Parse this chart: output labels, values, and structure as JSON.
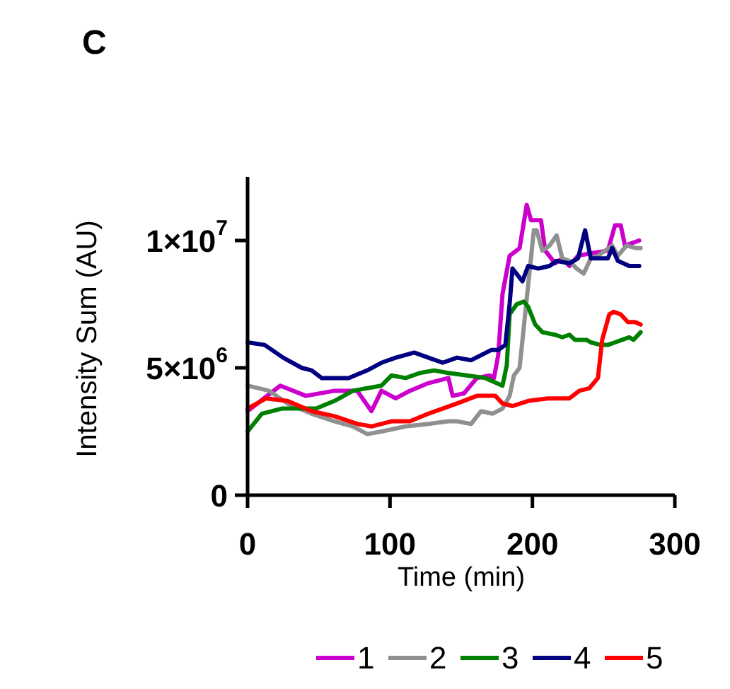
{
  "chart_data": {
    "type": "line",
    "title": "C",
    "xlabel": "Time (min)",
    "ylabel": "Intensity Sum (AU)",
    "xlim": [
      0,
      300
    ],
    "xticks": [
      0,
      100,
      200,
      300
    ],
    "ylim": [
      0,
      12500000
    ],
    "yticks": [
      0,
      {
        "value": 5000000,
        "label": "5×10$^{6}$"
      },
      {
        "value": 10000000,
        "label": "1×10$^{7}$"
      }
    ],
    "legend": "bottom",
    "series": [
      {
        "name": "1",
        "color": "#cc00cc",
        "x": [
          0,
          23,
          41,
          61,
          77,
          87,
          94,
          104,
          114,
          127,
          141,
          144,
          152,
          161,
          170,
          173,
          176,
          179,
          184,
          191,
          196,
          199,
          206,
          209,
          216,
          221,
          226,
          232,
          241,
          253,
          258,
          262,
          265,
          270,
          275
        ],
        "values": [
          3300000,
          4300000,
          3900000,
          4100000,
          4100000,
          3300000,
          4100000,
          3800000,
          4100000,
          4400000,
          4600000,
          3900000,
          4000000,
          4600000,
          4700000,
          4600000,
          5500000,
          7900000,
          9400000,
          9700000,
          11400000,
          10800000,
          10800000,
          9600000,
          9100000,
          9300000,
          9000000,
          9400000,
          9500000,
          9600000,
          10600000,
          10600000,
          9800000,
          9900000,
          10000000
        ]
      },
      {
        "name": "2",
        "color": "#909090",
        "x": [
          0,
          15,
          28,
          45,
          61,
          74,
          84,
          94,
          111,
          127,
          141,
          147,
          157,
          164,
          172,
          179,
          184,
          187,
          191,
          201,
          203,
          207,
          212,
          217,
          221,
          226,
          231,
          236,
          241,
          246,
          251,
          256,
          260,
          266,
          273,
          276
        ],
        "values": [
          4300000,
          4100000,
          3600000,
          3200000,
          2900000,
          2700000,
          2400000,
          2500000,
          2700000,
          2800000,
          2900000,
          2900000,
          2800000,
          3300000,
          3200000,
          3400000,
          3900000,
          4700000,
          5000000,
          10400000,
          10400000,
          9600000,
          9800000,
          10200000,
          9300000,
          9200000,
          8900000,
          8700000,
          9300000,
          9400000,
          9600000,
          9800000,
          9400000,
          9800000,
          9700000,
          9700000
        ]
      },
      {
        "name": "3",
        "color": "#008000",
        "x": [
          0,
          10,
          24,
          38,
          48,
          61,
          74,
          84,
          94,
          101,
          111,
          121,
          131,
          141,
          154,
          167,
          179,
          182,
          184,
          189,
          194,
          197,
          202,
          207,
          216,
          221,
          226,
          230,
          238,
          241,
          248,
          253,
          258,
          263,
          268,
          271,
          276
        ],
        "values": [
          2500000,
          3200000,
          3400000,
          3400000,
          3400000,
          3700000,
          4100000,
          4200000,
          4300000,
          4700000,
          4600000,
          4800000,
          4900000,
          4800000,
          4700000,
          4600000,
          4300000,
          5100000,
          7100000,
          7500000,
          7600000,
          7400000,
          6700000,
          6400000,
          6300000,
          6200000,
          6300000,
          6100000,
          6100000,
          6000000,
          5900000,
          5900000,
          6000000,
          6100000,
          6200000,
          6100000,
          6400000
        ]
      },
      {
        "name": "4",
        "color": "#000080",
        "x": [
          0,
          12,
          25,
          38,
          45,
          52,
          64,
          71,
          84,
          94,
          104,
          117,
          127,
          137,
          147,
          157,
          171,
          176,
          181,
          184,
          186,
          193,
          197,
          204,
          212,
          217,
          226,
          232,
          237,
          241,
          253,
          256,
          260,
          268,
          275
        ],
        "values": [
          6000000,
          5900000,
          5400000,
          5000000,
          4900000,
          4600000,
          4600000,
          4600000,
          4900000,
          5200000,
          5400000,
          5600000,
          5400000,
          5200000,
          5400000,
          5300000,
          5700000,
          5700000,
          5900000,
          7500000,
          8900000,
          8400000,
          9000000,
          8900000,
          9000000,
          9200000,
          9100000,
          9300000,
          10400000,
          9300000,
          9300000,
          9700000,
          9200000,
          9000000,
          9000000
        ]
      },
      {
        "name": "5",
        "color": "#ff0000",
        "x": [
          0,
          13,
          28,
          45,
          61,
          77,
          87,
          101,
          114,
          127,
          137,
          147,
          161,
          164,
          174,
          179,
          186,
          197,
          211,
          220,
          226,
          233,
          240,
          246,
          249,
          254,
          257,
          262,
          267,
          272,
          276
        ],
        "values": [
          3400000,
          3800000,
          3700000,
          3300000,
          3100000,
          2800000,
          2700000,
          2900000,
          2900000,
          3200000,
          3400000,
          3600000,
          3900000,
          3900000,
          3900000,
          3600000,
          3500000,
          3700000,
          3800000,
          3800000,
          3800000,
          4100000,
          4200000,
          4600000,
          6100000,
          7100000,
          7200000,
          7100000,
          6800000,
          6800000,
          6700000
        ]
      }
    ]
  }
}
